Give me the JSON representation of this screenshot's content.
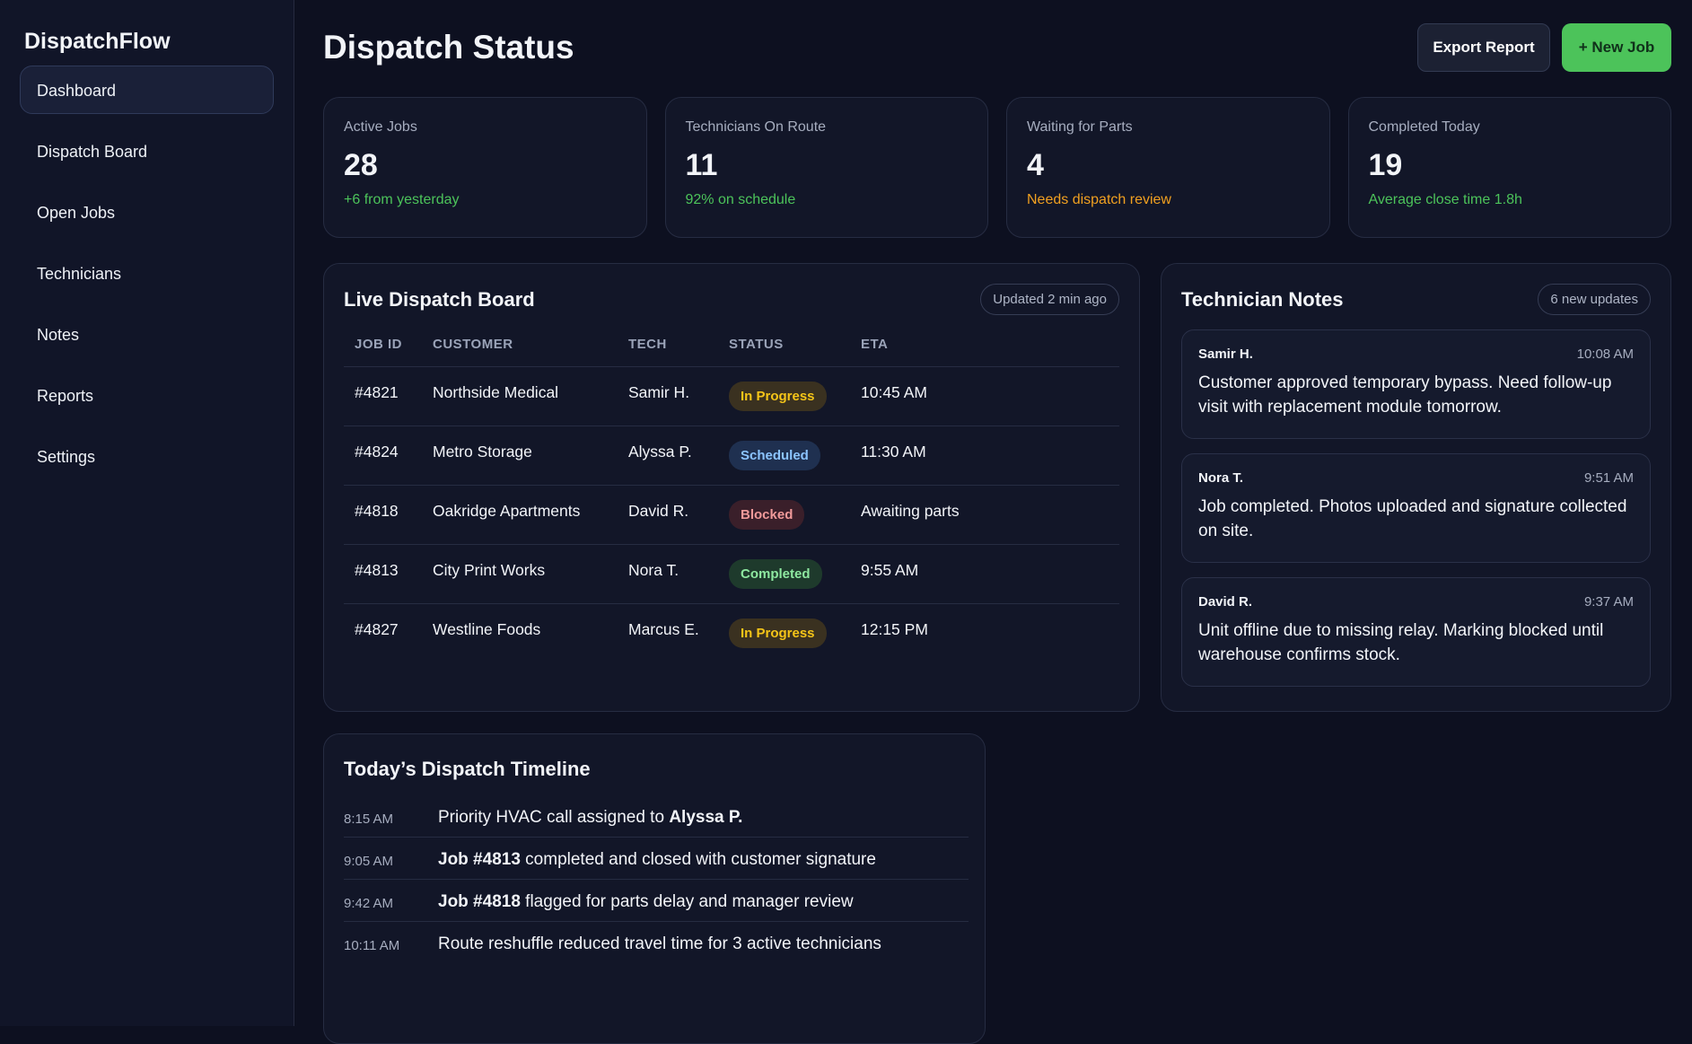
{
  "app": {
    "brand": "DispatchFlow"
  },
  "sidebar": {
    "items": [
      {
        "label": "Dashboard",
        "active": true
      },
      {
        "label": "Dispatch Board"
      },
      {
        "label": "Open Jobs"
      },
      {
        "label": "Technicians"
      },
      {
        "label": "Notes"
      },
      {
        "label": "Reports"
      },
      {
        "label": "Settings"
      }
    ]
  },
  "header": {
    "title": "Dispatch Status",
    "export_label": "Export Report",
    "new_job_label": "+ New Job"
  },
  "stats": [
    {
      "label": "Active Jobs",
      "value": "28",
      "sub": "+6 from yesterday",
      "color": "#4cc35a"
    },
    {
      "label": "Technicians On Route",
      "value": "11",
      "sub": "92% on schedule",
      "color": "#4cc35a"
    },
    {
      "label": "Waiting for Parts",
      "value": "4",
      "sub": "Needs dispatch review",
      "color": "#f0a020"
    },
    {
      "label": "Completed Today",
      "value": "19",
      "sub": "Average close time 1.8h",
      "color": "#4cc35a"
    }
  ],
  "board": {
    "title": "Live Dispatch Board",
    "updated": "Updated 2 min ago",
    "columns": [
      "JOB ID",
      "CUSTOMER",
      "TECH",
      "STATUS",
      "ETA"
    ],
    "rows": [
      {
        "id": "#4821",
        "customer": "Northside Medical",
        "tech": "Samir H.",
        "status": "In Progress",
        "eta": "10:45 AM"
      },
      {
        "id": "#4824",
        "customer": "Metro Storage",
        "tech": "Alyssa P.",
        "status": "Scheduled",
        "eta": "11:30 AM"
      },
      {
        "id": "#4818",
        "customer": "Oakridge Apartments",
        "tech": "David R.",
        "status": "Blocked",
        "eta": "Awaiting parts"
      },
      {
        "id": "#4813",
        "customer": "City Print Works",
        "tech": "Nora T.",
        "status": "Completed",
        "eta": "9:55 AM"
      },
      {
        "id": "#4827",
        "customer": "Westline Foods",
        "tech": "Marcus E.",
        "status": "In Progress",
        "eta": "12:15 PM"
      }
    ]
  },
  "status_colors": {
    "In Progress": {
      "bg": "#3a3120",
      "fg": "#f5c518"
    },
    "Scheduled": {
      "bg": "#1f3050",
      "fg": "#8cc4ff"
    },
    "Blocked": {
      "bg": "#3a1f2a",
      "fg": "#f09a9a"
    },
    "Completed": {
      "bg": "#1e3a2c",
      "fg": "#8ee8a0"
    }
  },
  "notes": {
    "title": "Technician Notes",
    "badge": "6 new updates",
    "items": [
      {
        "author": "Samir H.",
        "time": "10:08 AM",
        "text": "Customer approved temporary bypass. Need follow-up visit with replacement module tomorrow."
      },
      {
        "author": "Nora T.",
        "time": "9:51 AM",
        "text": "Job completed. Photos uploaded and signature collected on site."
      },
      {
        "author": "David R.",
        "time": "9:37 AM",
        "text": "Unit offline due to missing relay. Marking blocked until warehouse confirms stock."
      }
    ]
  },
  "timeline": {
    "title": "Today’s Dispatch Timeline",
    "items": [
      {
        "time": "8:15 AM",
        "pre": "Priority HVAC call assigned to ",
        "bold": "Alyssa P.",
        "post": ""
      },
      {
        "time": "9:05 AM",
        "pre": "",
        "bold": "Job #4813",
        "post": " completed and closed with customer signature"
      },
      {
        "time": "9:42 AM",
        "pre": "",
        "bold": "Job #4818",
        "post": " flagged for parts delay and manager review"
      },
      {
        "time": "10:11 AM",
        "pre": "Route reshuffle reduced travel time for 3 active technicians",
        "bold": "",
        "post": ""
      }
    ]
  }
}
